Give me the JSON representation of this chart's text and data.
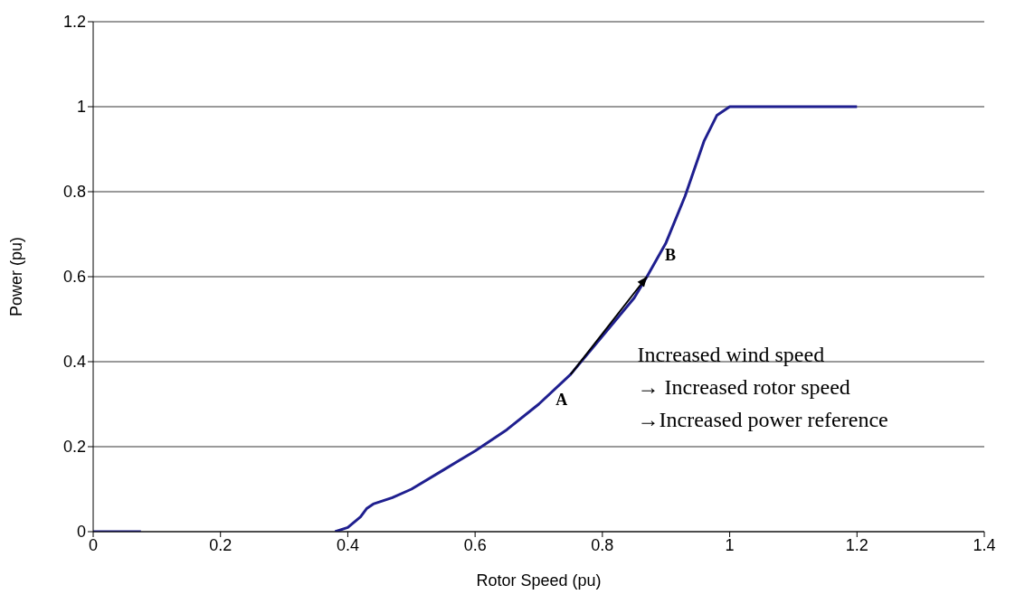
{
  "chart_data": {
    "type": "line",
    "xlabel": "Rotor Speed (pu)",
    "ylabel": "Power (pu)",
    "x": [
      0,
      0.075,
      0.076,
      0.38,
      0.4,
      0.42,
      0.43,
      0.44,
      0.47,
      0.5,
      0.55,
      0.6,
      0.65,
      0.7,
      0.75,
      0.8,
      0.85,
      0.87,
      0.9,
      0.93,
      0.96,
      0.98,
      1.0,
      1.05,
      1.1,
      1.2
    ],
    "series": [
      {
        "color": "#1f1f8f",
        "values": [
          0,
          0,
          null,
          0,
          0.01,
          0.035,
          0.055,
          0.065,
          0.08,
          0.1,
          0.145,
          0.19,
          0.24,
          0.3,
          0.37,
          0.46,
          0.55,
          0.6,
          0.68,
          0.79,
          0.92,
          0.98,
          1.0,
          1.0,
          1.0,
          1.0
        ]
      }
    ],
    "xlim": [
      0,
      1.4
    ],
    "xticks": [
      0,
      0.2,
      0.4,
      0.6,
      0.8,
      1,
      1.2,
      1.4
    ],
    "ylim": [
      0,
      1.2
    ],
    "yticks": [
      0,
      0.2,
      0.4,
      0.6,
      0.8,
      1,
      1.2
    ],
    "grid": "y",
    "marker": "none",
    "line_style": "solid",
    "annotations": [
      {
        "text": "A",
        "x": 0.75,
        "y": 0.37
      },
      {
        "text": "B",
        "x": 0.87,
        "y": 0.6
      },
      "Increased wind speed",
      "→ Increased rotor speed",
      "→Increased power reference"
    ]
  }
}
